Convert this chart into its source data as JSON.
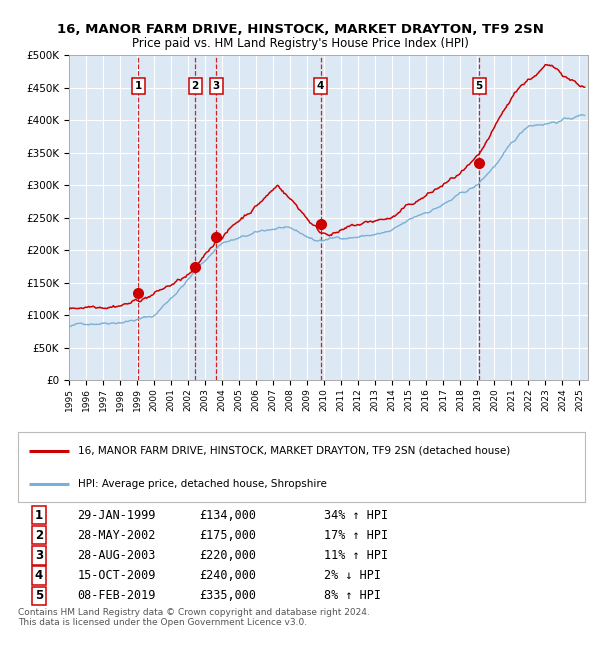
{
  "title": "16, MANOR FARM DRIVE, HINSTOCK, MARKET DRAYTON, TF9 2SN",
  "subtitle": "Price paid vs. HM Land Registry's House Price Index (HPI)",
  "bg_color": "#dce9f5",
  "red_line_color": "#cc0000",
  "blue_line_color": "#7bafd4",
  "sale_marker_color": "#cc0000",
  "vline_color": "#cc0000",
  "grid_color": "#ffffff",
  "sale_dates_x": [
    1999.08,
    2002.41,
    2003.66,
    2009.79,
    2019.11
  ],
  "sale_prices_y": [
    134000,
    175000,
    220000,
    240000,
    335000
  ],
  "sale_labels": [
    "1",
    "2",
    "3",
    "4",
    "5"
  ],
  "sale_table": [
    [
      "1",
      "29-JAN-1999",
      "£134,000",
      "34% ↑ HPI"
    ],
    [
      "2",
      "28-MAY-2002",
      "£175,000",
      "17% ↑ HPI"
    ],
    [
      "3",
      "28-AUG-2003",
      "£220,000",
      "11% ↑ HPI"
    ],
    [
      "4",
      "15-OCT-2009",
      "£240,000",
      "2% ↓ HPI"
    ],
    [
      "5",
      "08-FEB-2019",
      "£335,000",
      "8% ↑ HPI"
    ]
  ],
  "legend_red": "16, MANOR FARM DRIVE, HINSTOCK, MARKET DRAYTON, TF9 2SN (detached house)",
  "legend_blue": "HPI: Average price, detached house, Shropshire",
  "footer": "Contains HM Land Registry data © Crown copyright and database right 2024.\nThis data is licensed under the Open Government Licence v3.0.",
  "xmin": 1995.0,
  "xmax": 2025.5,
  "ymin": 0,
  "ymax": 500000,
  "yticks": [
    0,
    50000,
    100000,
    150000,
    200000,
    250000,
    300000,
    350000,
    400000,
    450000,
    500000
  ],
  "ytick_labels": [
    "£0",
    "£50K",
    "£100K",
    "£150K",
    "£200K",
    "£250K",
    "£300K",
    "£350K",
    "£400K",
    "£450K",
    "£500K"
  ]
}
